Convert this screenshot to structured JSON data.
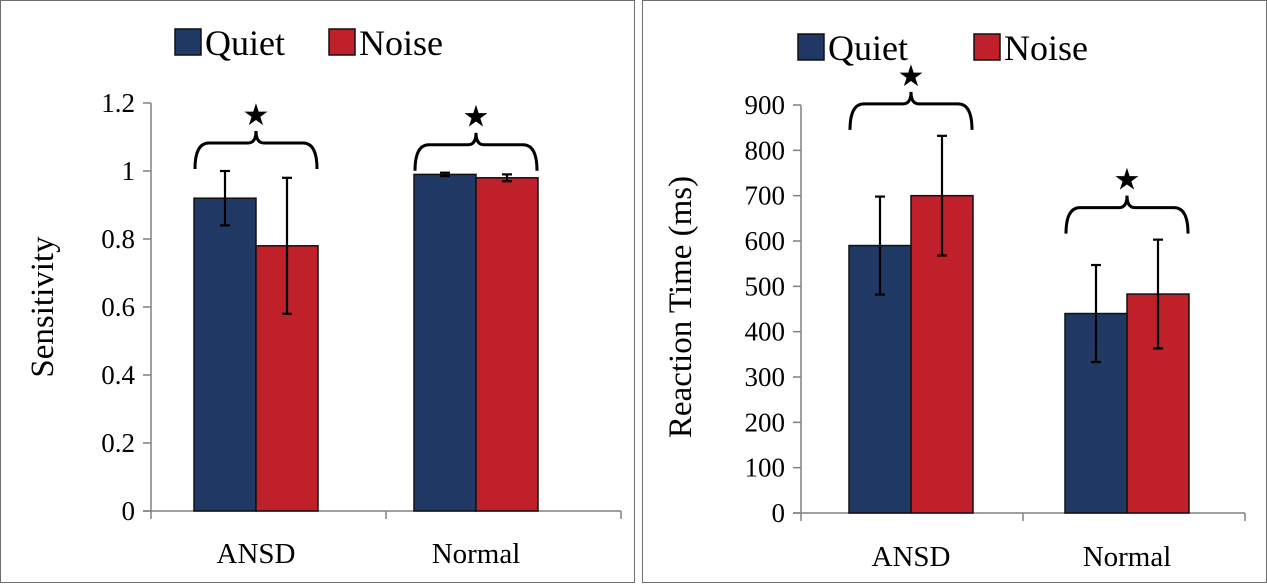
{
  "chart_data": [
    {
      "type": "bar",
      "title": "",
      "xlabel": "",
      "ylabel": "Sensitivity",
      "ylim": [
        0,
        1.2
      ],
      "yticks": [
        "0",
        "0.2",
        "0.4",
        "0.6",
        "0.8",
        "1",
        "1.2"
      ],
      "categories": [
        "ANSD",
        "Normal"
      ],
      "series": [
        {
          "name": "Quiet",
          "color": "#1f3864",
          "values": [
            0.92,
            0.99
          ],
          "errors": [
            0.08,
            0.005
          ]
        },
        {
          "name": "Noise",
          "color": "#c0202a",
          "values": [
            0.78,
            0.98
          ],
          "errors": [
            0.2,
            0.01
          ]
        }
      ],
      "significance": [
        "★",
        "★"
      ],
      "legend": "top",
      "grid": false
    },
    {
      "type": "bar",
      "title": "",
      "xlabel": "",
      "ylabel": "Reaction Time (ms)",
      "ylim": [
        0,
        900
      ],
      "yticks": [
        "0",
        "100",
        "200",
        "300",
        "400",
        "500",
        "600",
        "700",
        "800",
        "900"
      ],
      "categories": [
        "ANSD",
        "Normal"
      ],
      "series": [
        {
          "name": "Quiet",
          "color": "#1f3864",
          "values": [
            590,
            440
          ],
          "errors": [
            108,
            107
          ]
        },
        {
          "name": "Noise",
          "color": "#c0202a",
          "values": [
            700,
            483
          ],
          "errors": [
            132,
            120
          ]
        }
      ],
      "significance": [
        "★",
        "★"
      ],
      "legend": "top",
      "grid": false
    }
  ]
}
